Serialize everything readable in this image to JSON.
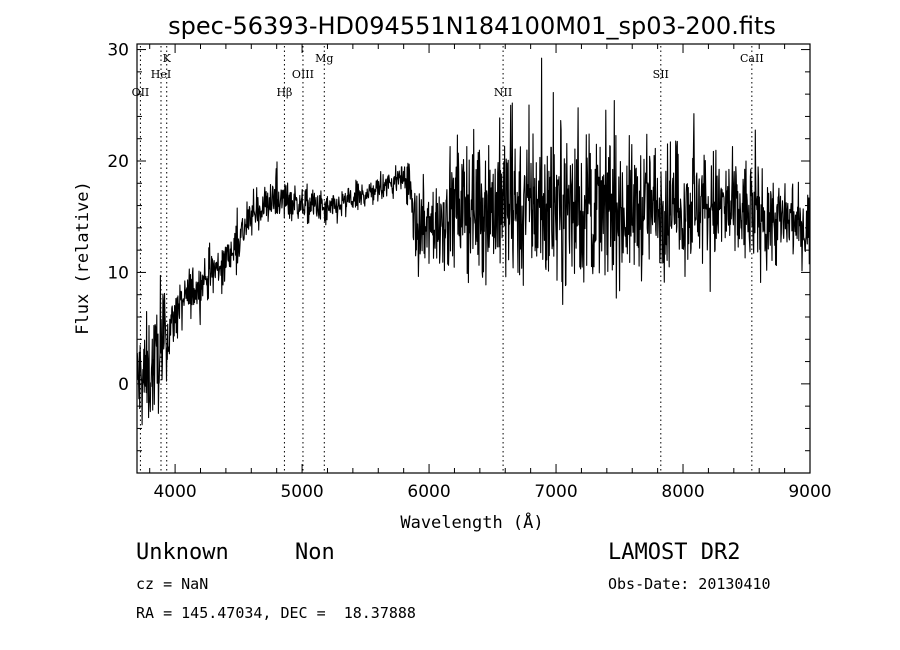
{
  "chart_data": {
    "type": "line",
    "title": "spec-56393-HD094551N184100M01_sp03-200.fits",
    "xlabel": "Wavelength (Å)",
    "ylabel": "Flux (relative)",
    "xlim": [
      3700,
      9000
    ],
    "ylim": [
      -8,
      30.5
    ],
    "x_ticks": [
      4000,
      5000,
      6000,
      7000,
      8000,
      9000
    ],
    "y_ticks": [
      0,
      10,
      20,
      30
    ],
    "line_color": "#000000",
    "grid": false,
    "lines": [
      {
        "label": "OII",
        "wavelength": 3727
      },
      {
        "label": "K",
        "wavelength": 3934
      },
      {
        "label": "HeI",
        "wavelength": 3889
      },
      {
        "label": "Hβ",
        "wavelength": 4861
      },
      {
        "label": "OIII",
        "wavelength": 5007
      },
      {
        "label": "Mg",
        "wavelength": 5175
      },
      {
        "label": "NII",
        "wavelength": 6583
      },
      {
        "label": "SII",
        "wavelength": 7825
      },
      {
        "label": "CaII",
        "wavelength": 8542
      }
    ],
    "envelope": {
      "x": [
        3700,
        3800,
        3900,
        4000,
        4100,
        4200,
        4300,
        4400,
        4500,
        4600,
        4700,
        4800,
        4900,
        5000,
        5100,
        5200,
        5300,
        5400,
        5500,
        5600,
        5700,
        5800,
        5850,
        5900,
        6000,
        6100,
        6200,
        6300,
        6400,
        6500,
        6600,
        6700,
        6800,
        6900,
        7000,
        7200,
        7400,
        7600,
        7800,
        8000,
        8200,
        8400,
        8600,
        8800,
        9000
      ],
      "y": [
        0,
        1,
        3,
        6,
        8,
        9,
        10,
        11,
        13,
        15,
        16,
        16.5,
        16.5,
        16,
        16,
        15.5,
        16,
        16.5,
        17,
        17.5,
        18,
        18.5,
        18,
        13,
        14,
        15,
        15.5,
        16,
        16,
        16,
        16,
        16,
        16,
        16,
        16,
        15.5,
        15.5,
        15.5,
        16,
        16,
        16,
        15.5,
        15,
        14.5,
        14
      ]
    },
    "noise": {
      "x": [
        3700,
        3900,
        4000,
        4300,
        4600,
        5000,
        5500,
        5800,
        5900,
        6200,
        6600,
        7000,
        7500,
        8000,
        8500,
        9000
      ],
      "amplitude": [
        5,
        4,
        2,
        2.2,
        1.6,
        1.5,
        1.2,
        1.2,
        3.5,
        5,
        6.5,
        6.5,
        5.5,
        5,
        4.5,
        3
      ]
    }
  },
  "info": {
    "class": "Unknown",
    "subclass": "Non",
    "survey": "LAMOST DR2",
    "cz": "cz = NaN",
    "obs_date": "Obs-Date: 20130410",
    "coords": "RA = 145.47034, DEC =  18.37888"
  }
}
